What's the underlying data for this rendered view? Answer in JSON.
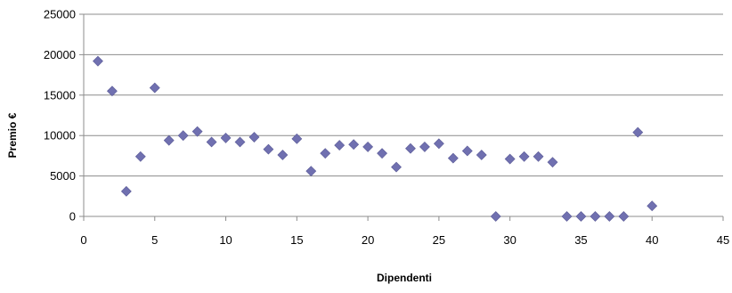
{
  "chart_data": {
    "type": "scatter",
    "title": "",
    "xlabel": "Dipendenti",
    "ylabel": "Premio €",
    "xlim": [
      0,
      45
    ],
    "ylim": [
      0,
      25000
    ],
    "xticks": [
      "0",
      "5",
      "10",
      "15",
      "20",
      "25",
      "30",
      "35",
      "40",
      "45"
    ],
    "yticks": [
      "0",
      "5000",
      "10000",
      "15000",
      "20000",
      "25000"
    ],
    "grid": "horizontal",
    "legend": "none",
    "marker": "diamond",
    "marker_color": "#7070B0",
    "points": [
      {
        "x": 1,
        "y": 19200
      },
      {
        "x": 2,
        "y": 15500
      },
      {
        "x": 3,
        "y": 3100
      },
      {
        "x": 4,
        "y": 7400
      },
      {
        "x": 5,
        "y": 15900
      },
      {
        "x": 6,
        "y": 9400
      },
      {
        "x": 7,
        "y": 10000
      },
      {
        "x": 8,
        "y": 10500
      },
      {
        "x": 9,
        "y": 9200
      },
      {
        "x": 10,
        "y": 9700
      },
      {
        "x": 11,
        "y": 9200
      },
      {
        "x": 12,
        "y": 9800
      },
      {
        "x": 13,
        "y": 8300
      },
      {
        "x": 14,
        "y": 7600
      },
      {
        "x": 15,
        "y": 9600
      },
      {
        "x": 16,
        "y": 5600
      },
      {
        "x": 17,
        "y": 7800
      },
      {
        "x": 18,
        "y": 8800
      },
      {
        "x": 19,
        "y": 8900
      },
      {
        "x": 20,
        "y": 8600
      },
      {
        "x": 21,
        "y": 7800
      },
      {
        "x": 22,
        "y": 6100
      },
      {
        "x": 23,
        "y": 8400
      },
      {
        "x": 24,
        "y": 8600
      },
      {
        "x": 25,
        "y": 9000
      },
      {
        "x": 26,
        "y": 7200
      },
      {
        "x": 27,
        "y": 8100
      },
      {
        "x": 28,
        "y": 7600
      },
      {
        "x": 29,
        "y": 0
      },
      {
        "x": 30,
        "y": 7100
      },
      {
        "x": 31,
        "y": 7400
      },
      {
        "x": 32,
        "y": 7400
      },
      {
        "x": 33,
        "y": 6700
      },
      {
        "x": 34,
        "y": 0
      },
      {
        "x": 35,
        "y": 0
      },
      {
        "x": 36,
        "y": 0
      },
      {
        "x": 37,
        "y": 0
      },
      {
        "x": 38,
        "y": 0
      },
      {
        "x": 39,
        "y": 10400
      },
      {
        "x": 40,
        "y": 1300
      }
    ]
  }
}
